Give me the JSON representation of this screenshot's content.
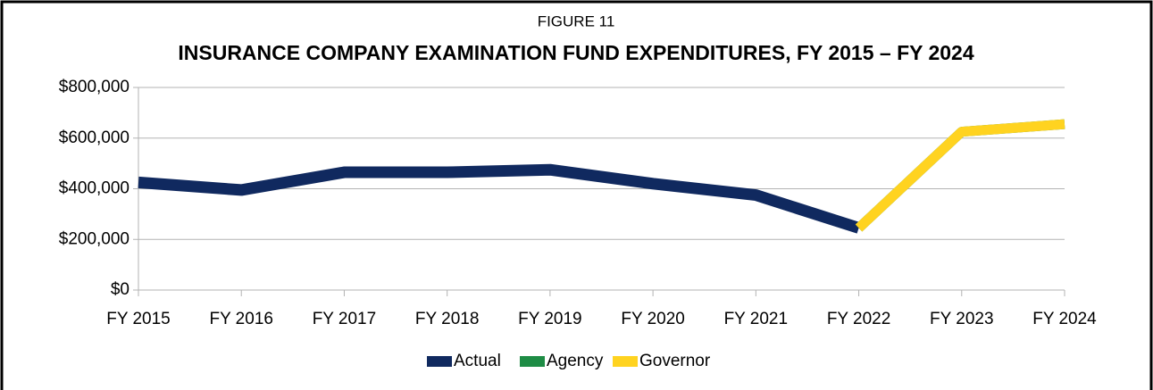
{
  "chart_data": {
    "type": "line",
    "subtitle": "FIGURE 11",
    "title": "INSURANCE COMPANY EXAMINATION FUND EXPENDITURES, FY 2015 – FY 2024",
    "categories": [
      "FY 2015",
      "FY 2016",
      "FY 2017",
      "FY 2018",
      "FY 2019",
      "FY 2020",
      "FY 2021",
      "FY 2022",
      "FY 2023",
      "FY 2024"
    ],
    "series": [
      {
        "name": "Actual",
        "color": "#10295f",
        "values": [
          425000,
          395000,
          465000,
          465000,
          475000,
          420000,
          375000,
          245000,
          null,
          null
        ]
      },
      {
        "name": "Agency",
        "color": "#1e8c45",
        "values": [
          null,
          null,
          null,
          null,
          null,
          null,
          null,
          245000,
          625000,
          655000
        ]
      },
      {
        "name": "Governor",
        "color": "#ffd320",
        "values": [
          null,
          null,
          null,
          null,
          null,
          null,
          null,
          245000,
          625000,
          655000
        ]
      }
    ],
    "ylim": [
      0,
      800000
    ],
    "yticks": [
      {
        "value": 0,
        "label": "$0"
      },
      {
        "value": 200000,
        "label": "$200,000"
      },
      {
        "value": 400000,
        "label": "$400,000"
      },
      {
        "value": 600000,
        "label": "$600,000"
      },
      {
        "value": 800000,
        "label": "$800,000"
      }
    ],
    "grid": true,
    "legend": "bottom"
  }
}
